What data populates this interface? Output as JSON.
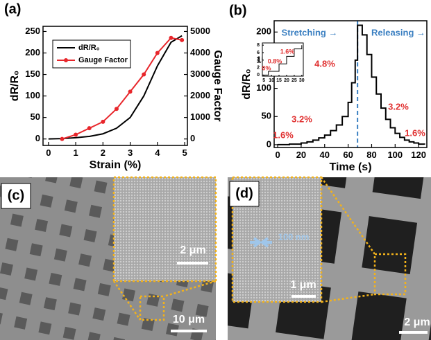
{
  "chart_data": [
    {
      "type": "line",
      "xlabel": "Strain (%)",
      "ylabel": "dR/R₀",
      "y2label": "Gauge Factor",
      "x": [
        0,
        0.5,
        1,
        1.5,
        2,
        2.5,
        3,
        3.5,
        4,
        4.5,
        4.9
      ],
      "series": [
        {
          "name": "dR/R₀",
          "color": "#000000",
          "values": [
            0,
            1,
            3,
            6,
            12,
            25,
            50,
            100,
            170,
            225,
            240
          ]
        },
        {
          "name": "Gauge Factor",
          "color": "#e8262b",
          "axis": "y2",
          "markers": true,
          "values": [
            null,
            0,
            200,
            500,
            800,
            1400,
            2200,
            3000,
            4000,
            4700,
            4600
          ]
        }
      ],
      "xlim": [
        -0.2,
        5.1
      ],
      "xticks": [
        0,
        1,
        2,
        3,
        4,
        5
      ],
      "ylim": [
        -15,
        262
      ],
      "yticks": [
        0,
        50,
        100,
        150,
        200,
        250
      ],
      "y2lim": [
        -300,
        5240
      ],
      "y2ticks": [
        0,
        1000,
        2000,
        3000,
        4000,
        5000
      ],
      "legend": "upper left",
      "grid": false
    },
    {
      "type": "line",
      "step": true,
      "xlabel": "Time (s)",
      "ylabel": "dR/R₀",
      "x": [
        0,
        10,
        20,
        25,
        30,
        35,
        40,
        45,
        50,
        55,
        60,
        63,
        66,
        68,
        72,
        76,
        80,
        84,
        88,
        92,
        96,
        100,
        104,
        108,
        112,
        116,
        120,
        125
      ],
      "series": [
        {
          "name": "dR/R₀",
          "color": "#000000",
          "values": [
            0,
            1,
            3,
            5,
            8,
            12,
            17,
            25,
            35,
            50,
            75,
            110,
            150,
            212,
            195,
            160,
            120,
            90,
            65,
            45,
            30,
            20,
            13,
            8,
            5,
            3,
            1,
            0
          ]
        }
      ],
      "xlim": [
        -3,
        127
      ],
      "xticks": [
        0,
        20,
        40,
        60,
        80,
        100,
        120
      ],
      "ylim": [
        -5,
        220
      ],
      "yticks": [
        0,
        50,
        100,
        150,
        200
      ],
      "vline": 68,
      "annotations": [
        "Stretching →",
        "Releasing →",
        "4.8%",
        "3.2%",
        "1.6%",
        "3.2%",
        "1.6%"
      ],
      "grid": false
    },
    {
      "type": "line",
      "step": true,
      "x": [
        5,
        8,
        10,
        15,
        17,
        20,
        22,
        25,
        27,
        30
      ],
      "series": [
        {
          "name": "inset",
          "color": "#000000",
          "values": [
            0,
            1,
            1,
            3,
            3,
            5,
            5,
            7,
            7,
            8
          ]
        }
      ],
      "xlim": [
        4,
        31
      ],
      "xticks": [
        5,
        10,
        15,
        20,
        25,
        30
      ],
      "ylim": [
        -0.3,
        8.6
      ],
      "yticks": [
        0,
        2,
        4,
        6,
        8
      ],
      "annotations": [
        "0%",
        "0.8%",
        "1.6%"
      ],
      "grid": false
    }
  ],
  "panels": {
    "a": "(a)",
    "b": "(b)",
    "c": "(c)",
    "d": "(d)",
    "c_inset_scale": "2 μm",
    "c_scale": "10 μm",
    "d_gap": "100 nm",
    "d_inset_scale": "1 μm",
    "d_scale": "2 μm"
  }
}
